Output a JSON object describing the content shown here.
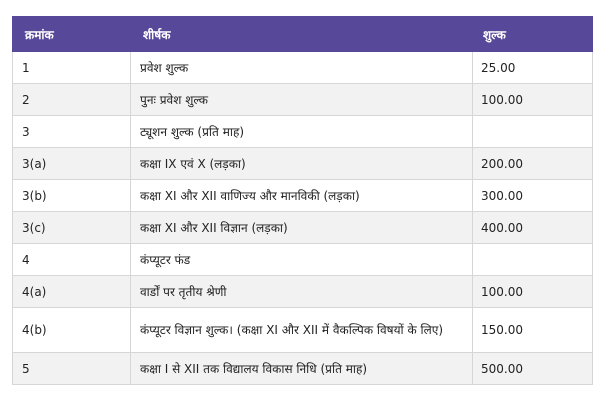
{
  "table": {
    "headers": {
      "serial": "क्रमांक",
      "title": "शीर्षक",
      "fee": "शुल्क"
    },
    "rows": [
      {
        "serial": "1",
        "title": "प्रवेश शुल्क",
        "fee": "25.00"
      },
      {
        "serial": "2",
        "title": "पुनः प्रवेश शुल्क",
        "fee": "100.00"
      },
      {
        "serial": "3",
        "title": "ट्यूशन शुल्क (प्रति माह)",
        "fee": ""
      },
      {
        "serial": "3(a)",
        "title": "कक्षा IX एवं X (लड़का)",
        "fee": "200.00"
      },
      {
        "serial": "3(b)",
        "title": "कक्षा XI और XII वाणिज्य और मानविकी (लड़का)",
        "fee": "300.00"
      },
      {
        "serial": "3(c)",
        "title": "कक्षा XI और XII विज्ञान (लड़का)",
        "fee": "400.00"
      },
      {
        "serial": "4",
        "title": "कंप्यूटर फंड",
        "fee": ""
      },
      {
        "serial": "4(a)",
        "title": "वार्डों पर तृतीय श्रेणी",
        "fee": "100.00"
      },
      {
        "serial": "4(b)",
        "title": "कंप्यूटर विज्ञान शुल्क। (कक्षा XI और XII में वैकल्पिक विषयों के लिए)",
        "fee": "150.00"
      },
      {
        "serial": "5",
        "title": "कक्षा I से XII तक विद्यालय विकास निधि (प्रति माह)",
        "fee": "500.00"
      }
    ]
  },
  "colors": {
    "header_bg": "#57489a",
    "header_text": "#ffffff",
    "stripe_bg": "#f2f2f2",
    "border": "#d6d6d6"
  }
}
